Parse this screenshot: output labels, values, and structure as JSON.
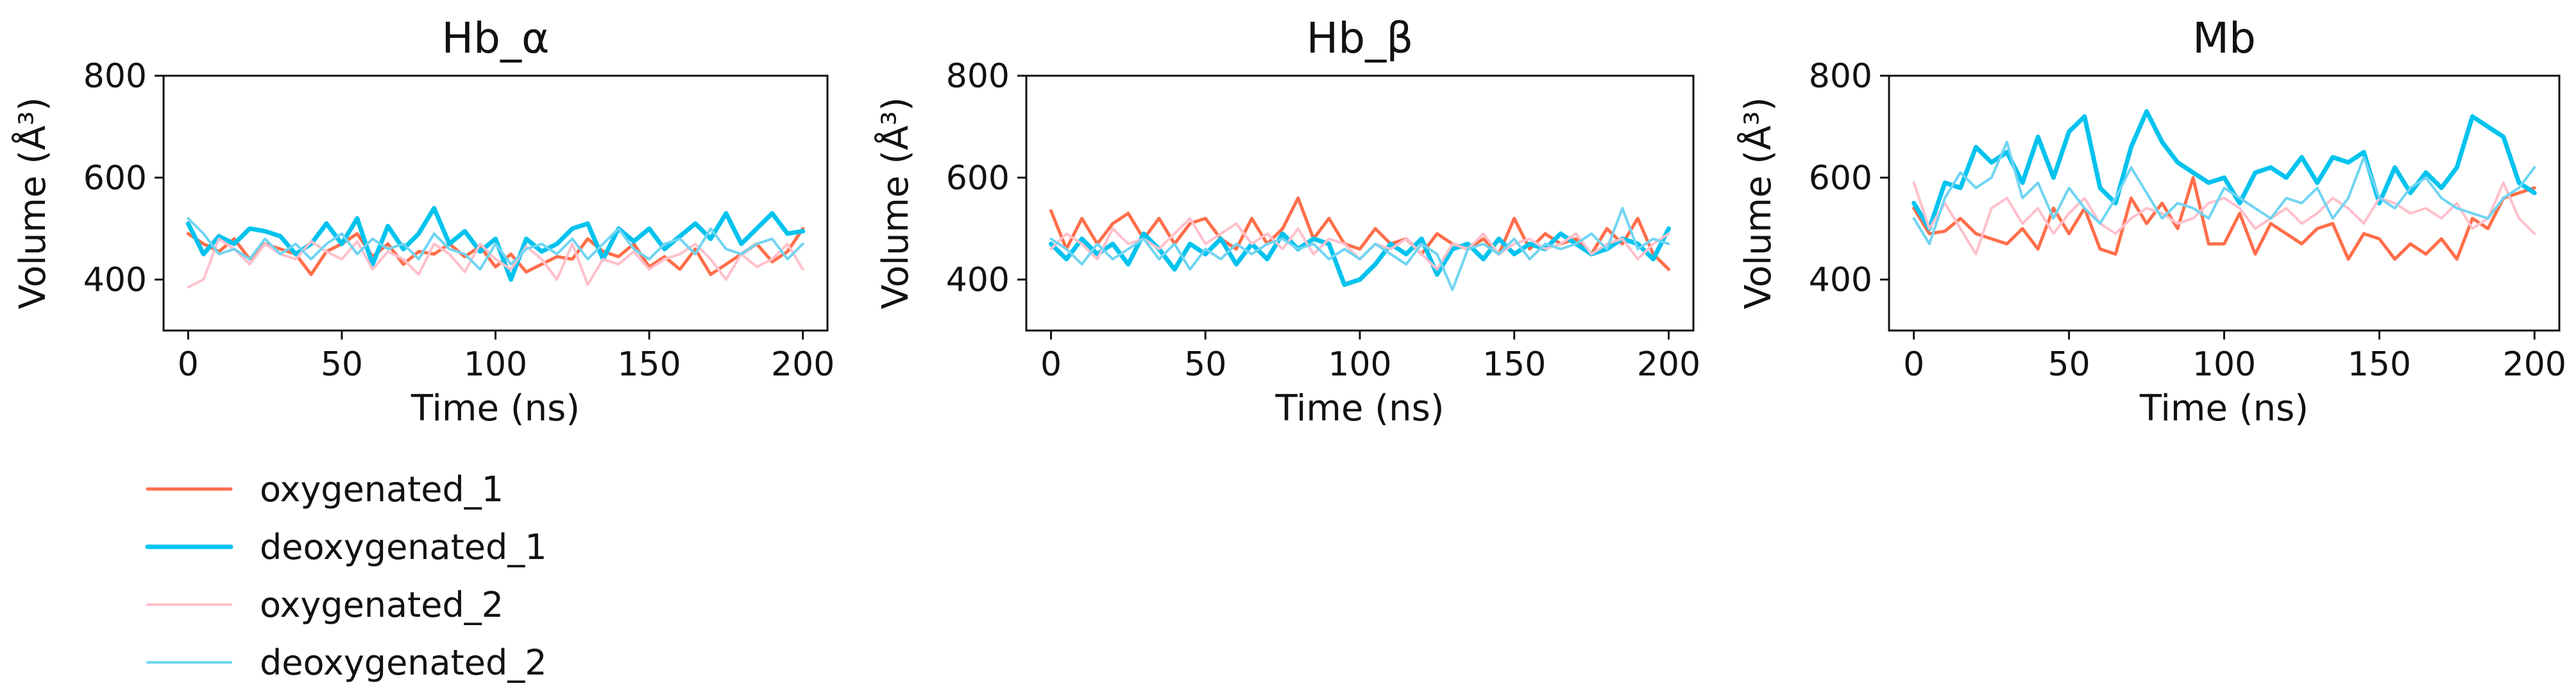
{
  "figure": {
    "legend": {
      "position": "bottom-left",
      "entries": [
        {
          "label": "oxygenated_1",
          "color": "#ff6e4a"
        },
        {
          "label": "deoxygenated_1",
          "color": "#00c3ee"
        },
        {
          "label": "oxygenated_2",
          "color": "#ffc0cb"
        },
        {
          "label": "deoxygenated_2",
          "color": "#70d4f2"
        }
      ]
    }
  },
  "chart_data": [
    {
      "type": "line",
      "title": "Hb_α",
      "xlabel": "Time (ns)",
      "ylabel": "Volume (Å³)",
      "xlim": [
        -8,
        208
      ],
      "ylim": [
        300,
        800
      ],
      "xticks": [
        0,
        50,
        100,
        150,
        200
      ],
      "yticks": [
        400,
        600,
        800
      ],
      "grid": false,
      "x": [
        0,
        5,
        10,
        15,
        20,
        25,
        30,
        35,
        40,
        45,
        50,
        55,
        60,
        65,
        70,
        75,
        80,
        85,
        90,
        95,
        100,
        105,
        110,
        115,
        120,
        125,
        130,
        135,
        140,
        145,
        150,
        155,
        160,
        165,
        170,
        175,
        180,
        185,
        190,
        195,
        200
      ],
      "series": [
        {
          "name": "oxygenated_1",
          "color": "#ff6e4a",
          "values": [
            490,
            470,
            455,
            480,
            440,
            470,
            460,
            450,
            410,
            455,
            470,
            490,
            445,
            470,
            430,
            455,
            450,
            470,
            445,
            465,
            425,
            450,
            415,
            430,
            445,
            440,
            480,
            455,
            445,
            470,
            425,
            445,
            420,
            460,
            410,
            430,
            450,
            470,
            435,
            455,
            500
          ]
        },
        {
          "name": "deoxygenated_1",
          "color": "#00c3ee",
          "values": [
            510,
            450,
            485,
            470,
            500,
            495,
            485,
            450,
            470,
            510,
            470,
            520,
            430,
            505,
            460,
            490,
            540,
            470,
            495,
            455,
            480,
            400,
            480,
            455,
            470,
            500,
            510,
            440,
            500,
            475,
            500,
            460,
            485,
            510,
            480,
            530,
            470,
            500,
            530,
            490,
            495
          ]
        },
        {
          "name": "oxygenated_2",
          "color": "#ffc0cb",
          "values": [
            385,
            400,
            480,
            460,
            430,
            470,
            450,
            440,
            475,
            455,
            440,
            475,
            420,
            455,
            440,
            410,
            470,
            450,
            415,
            470,
            440,
            420,
            465,
            440,
            400,
            470,
            390,
            440,
            430,
            455,
            420,
            440,
            450,
            470,
            440,
            400,
            450,
            425,
            440,
            470,
            420
          ]
        },
        {
          "name": "deoxygenated_2",
          "color": "#70d4f2",
          "values": [
            520,
            490,
            450,
            460,
            440,
            480,
            450,
            470,
            440,
            470,
            490,
            450,
            480,
            460,
            470,
            440,
            490,
            460,
            450,
            420,
            470,
            430,
            460,
            470,
            450,
            480,
            440,
            470,
            500,
            460,
            440,
            470,
            480,
            450,
            500,
            460,
            450,
            470,
            480,
            440,
            470
          ]
        }
      ]
    },
    {
      "type": "line",
      "title": "Hb_β",
      "xlabel": "Time (ns)",
      "ylabel": "Volume (Å³)",
      "xlim": [
        -8,
        208
      ],
      "ylim": [
        300,
        800
      ],
      "xticks": [
        0,
        50,
        100,
        150,
        200
      ],
      "yticks": [
        400,
        600,
        800
      ],
      "grid": false,
      "x": [
        0,
        5,
        10,
        15,
        20,
        25,
        30,
        35,
        40,
        45,
        50,
        55,
        60,
        65,
        70,
        75,
        80,
        85,
        90,
        95,
        100,
        105,
        110,
        115,
        120,
        125,
        130,
        135,
        140,
        145,
        150,
        155,
        160,
        165,
        170,
        175,
        180,
        185,
        190,
        195,
        200
      ],
      "series": [
        {
          "name": "oxygenated_1",
          "color": "#ff6e4a",
          "values": [
            535,
            460,
            520,
            470,
            510,
            530,
            480,
            520,
            470,
            510,
            520,
            480,
            460,
            520,
            470,
            500,
            560,
            480,
            520,
            470,
            460,
            500,
            470,
            480,
            450,
            490,
            470,
            460,
            480,
            450,
            520,
            460,
            490,
            470,
            480,
            450,
            500,
            470,
            520,
            450,
            420
          ]
        },
        {
          "name": "deoxygenated_1",
          "color": "#00c3ee",
          "values": [
            470,
            440,
            480,
            450,
            470,
            430,
            490,
            460,
            420,
            470,
            450,
            480,
            430,
            470,
            440,
            490,
            460,
            480,
            470,
            390,
            400,
            430,
            470,
            450,
            480,
            410,
            460,
            470,
            440,
            480,
            450,
            470,
            460,
            490,
            470,
            450,
            460,
            480,
            470,
            440,
            500
          ]
        },
        {
          "name": "oxygenated_2",
          "color": "#ffc0cb",
          "values": [
            460,
            490,
            470,
            440,
            500,
            470,
            480,
            460,
            490,
            520,
            470,
            490,
            510,
            470,
            490,
            460,
            500,
            450,
            480,
            470,
            440,
            470,
            460,
            480,
            450,
            420,
            470,
            460,
            490,
            450,
            470,
            480,
            460,
            470,
            490,
            450,
            470,
            480,
            440,
            470,
            490
          ]
        },
        {
          "name": "deoxygenated_2",
          "color": "#70d4f2",
          "values": [
            480,
            460,
            430,
            470,
            440,
            460,
            480,
            440,
            470,
            420,
            460,
            440,
            470,
            450,
            470,
            480,
            460,
            470,
            440,
            460,
            440,
            470,
            450,
            430,
            470,
            450,
            380,
            460,
            470,
            450,
            480,
            440,
            470,
            460,
            470,
            490,
            460,
            540,
            460,
            480,
            470
          ]
        }
      ]
    },
    {
      "type": "line",
      "title": "Mb",
      "xlabel": "Time (ns)",
      "ylabel": "Volume (Å³)",
      "xlim": [
        -8,
        208
      ],
      "ylim": [
        300,
        800
      ],
      "xticks": [
        0,
        50,
        100,
        150,
        200
      ],
      "yticks": [
        400,
        600,
        800
      ],
      "grid": false,
      "x": [
        0,
        5,
        10,
        15,
        20,
        25,
        30,
        35,
        40,
        45,
        50,
        55,
        60,
        65,
        70,
        75,
        80,
        85,
        90,
        95,
        100,
        105,
        110,
        115,
        120,
        125,
        130,
        135,
        140,
        145,
        150,
        155,
        160,
        165,
        170,
        175,
        180,
        185,
        190,
        195,
        200
      ],
      "series": [
        {
          "name": "oxygenated_1",
          "color": "#ff6e4a",
          "values": [
            540,
            490,
            495,
            520,
            490,
            480,
            470,
            500,
            460,
            540,
            490,
            540,
            460,
            450,
            560,
            510,
            550,
            500,
            600,
            470,
            470,
            530,
            450,
            510,
            490,
            470,
            500,
            510,
            440,
            490,
            480,
            440,
            470,
            450,
            480,
            440,
            520,
            500,
            560,
            570,
            580
          ]
        },
        {
          "name": "deoxygenated_1",
          "color": "#00c3ee",
          "values": [
            550,
            500,
            590,
            580,
            660,
            630,
            650,
            590,
            680,
            600,
            690,
            720,
            580,
            550,
            660,
            730,
            670,
            630,
            610,
            590,
            600,
            550,
            610,
            620,
            600,
            640,
            590,
            640,
            630,
            650,
            550,
            620,
            570,
            610,
            580,
            620,
            720,
            700,
            680,
            590,
            570
          ]
        },
        {
          "name": "oxygenated_2",
          "color": "#ffc0cb",
          "values": [
            590,
            500,
            550,
            500,
            450,
            540,
            560,
            510,
            540,
            490,
            530,
            560,
            510,
            490,
            520,
            540,
            530,
            510,
            520,
            550,
            560,
            540,
            500,
            520,
            540,
            510,
            530,
            560,
            540,
            510,
            560,
            550,
            530,
            540,
            520,
            550,
            500,
            520,
            590,
            520,
            490
          ]
        },
        {
          "name": "deoxygenated_2",
          "color": "#70d4f2",
          "values": [
            520,
            470,
            560,
            610,
            580,
            600,
            670,
            560,
            590,
            520,
            580,
            540,
            510,
            560,
            620,
            570,
            520,
            550,
            540,
            520,
            580,
            560,
            540,
            520,
            560,
            550,
            580,
            520,
            560,
            640,
            560,
            540,
            580,
            600,
            560,
            540,
            530,
            520,
            560,
            580,
            620
          ]
        }
      ]
    }
  ]
}
